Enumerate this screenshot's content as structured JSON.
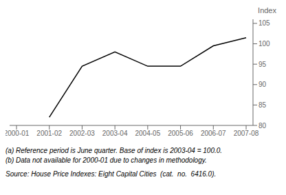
{
  "chart_data": {
    "type": "line",
    "y_label": "Index",
    "categories": [
      "2000-01",
      "2001-02",
      "2002-03",
      "2003-04",
      "2004-05",
      "2005-06",
      "2006-07",
      "2007-08"
    ],
    "values": [
      null,
      82.0,
      94.5,
      98.0,
      94.5,
      94.5,
      99.5,
      101.5
    ],
    "color": "#000000",
    "ylim": [
      80,
      106
    ],
    "yticks": [
      80,
      85,
      90,
      95,
      100,
      105
    ],
    "grid": false,
    "annotations": [
      "(a) Reference period is June quarter. Base of index is 2003-04 = 100.0.",
      "(b) Data not available for 2000-01 due to changes in methodology.",
      "Source: House Price Indexes: Eight Capital Cities  (cat.  no.  6416.0)."
    ]
  }
}
